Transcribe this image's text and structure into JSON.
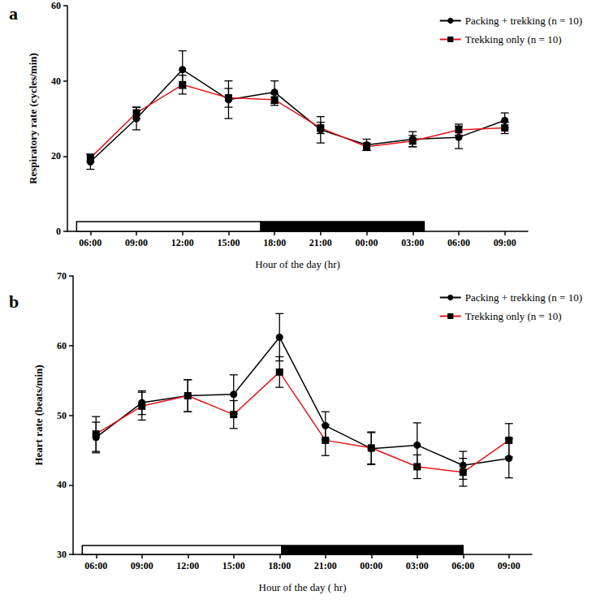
{
  "chart_data": [
    {
      "type": "line",
      "title": "a",
      "x_label": "Hour of the day (hr)",
      "y_label": "Respiratory rate (cycles/min)",
      "categories": [
        "06:00",
        "09:00",
        "12:00",
        "15:00",
        "18:00",
        "21:00",
        "00:00",
        "03:00",
        "06:00",
        "09:00"
      ],
      "ylim": [
        0,
        60
      ],
      "yticks": [
        0,
        20,
        40,
        60
      ],
      "grid": false,
      "legend": "upper right",
      "photoperiod": {
        "light": [
          -0.3,
          3.7
        ],
        "dark": [
          3.7,
          7.25
        ]
      },
      "series": [
        {
          "name": "Packing + trekking (n = 10)",
          "color": "#000000",
          "marker": "circle",
          "values": [
            18.5,
            30,
            43,
            35,
            37,
            27,
            23,
            24.5,
            25,
            29.5
          ],
          "errors": [
            2,
            3,
            5,
            5,
            3,
            3.5,
            1.5,
            2,
            3,
            2
          ]
        },
        {
          "name": "Trekking only (n = 10)",
          "color": "#e8141a",
          "marker": "square",
          "values": [
            19.5,
            31.5,
            39,
            35.5,
            35,
            27.5,
            22.5,
            24,
            27,
            27.5
          ],
          "errors": [
            1,
            1.5,
            2.5,
            2.5,
            1.5,
            1.5,
            1,
            1.5,
            1.5,
            1.5
          ]
        }
      ]
    },
    {
      "type": "line",
      "title": "b",
      "x_label": "Hour of the day ( hr)",
      "y_label": "Heart rate (beats/min)",
      "categories": [
        "06:00",
        "09:00",
        "12:00",
        "15:00",
        "18:00",
        "21:00",
        "00:00",
        "03:00",
        "06:00",
        "09:00"
      ],
      "ylim": [
        30,
        70
      ],
      "yticks": [
        30,
        40,
        50,
        60,
        70
      ],
      "grid": false,
      "legend": "upper right",
      "photoperiod": {
        "light": [
          -0.3,
          4.05
        ],
        "dark": [
          4.05,
          8
        ]
      },
      "series": [
        {
          "name": "Packing + trekking (n = 10)",
          "color": "#000000",
          "marker": "circle",
          "values": [
            46.8,
            51.8,
            52.8,
            53,
            61.2,
            48.5,
            45.2,
            45.7,
            42.8,
            43.8
          ],
          "errors": [
            2.2,
            1.7,
            2.3,
            2.8,
            3.4,
            2,
            2.3,
            3.2,
            2,
            2.8
          ]
        },
        {
          "name": "Trekking only (n = 10)",
          "color": "#e8141a",
          "marker": "square",
          "values": [
            47.3,
            51.3,
            52.8,
            50.1,
            56.2,
            46.4,
            45.3,
            42.6,
            41.8,
            46.4
          ],
          "errors": [
            2.5,
            2,
            2.3,
            2,
            2.2,
            2.2,
            2.3,
            1.7,
            2,
            2.4
          ]
        }
      ]
    }
  ]
}
